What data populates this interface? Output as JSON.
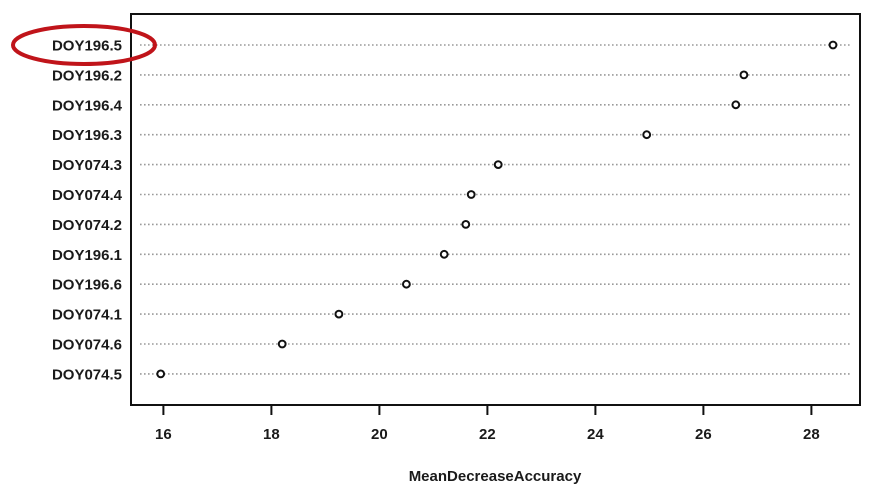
{
  "chart_data": {
    "type": "scatter",
    "style": "dotchart",
    "title": "",
    "xlabel": "MeanDecreaseAccuracy",
    "ylabel": "",
    "xlim": [
      15.4,
      28.9
    ],
    "xticks": [
      16,
      18,
      20,
      22,
      24,
      26,
      28
    ],
    "grid": "dotted horizontal lines per category",
    "legend": "none",
    "highlight": {
      "category": "DOY196.5",
      "shape": "ellipse",
      "color": "#c0141a"
    },
    "categories": [
      "DOY196.5",
      "DOY196.2",
      "DOY196.4",
      "DOY196.3",
      "DOY074.3",
      "DOY074.4",
      "DOY074.2",
      "DOY196.1",
      "DOY196.6",
      "DOY074.1",
      "DOY074.6",
      "DOY074.5"
    ],
    "values": [
      28.4,
      26.75,
      26.6,
      24.95,
      22.2,
      21.7,
      21.6,
      21.2,
      20.5,
      19.25,
      18.2,
      15.95
    ]
  }
}
